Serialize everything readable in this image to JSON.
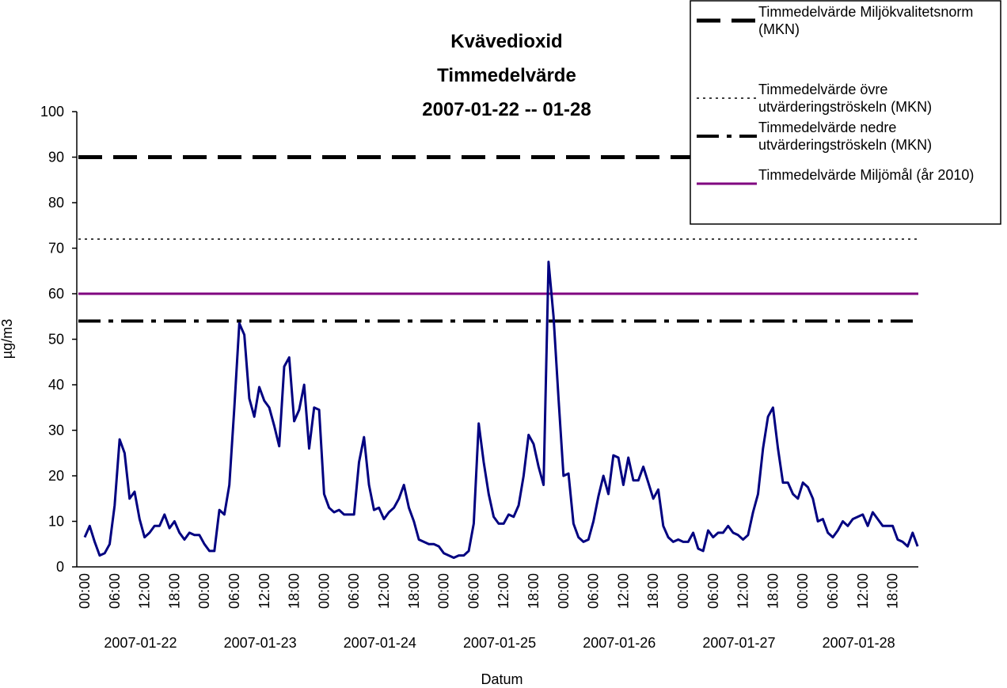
{
  "chart_data": {
    "type": "line",
    "title": [
      "Kvävedioxid",
      "Timmedelvärde",
      "2007-01-22 -- 01-28"
    ],
    "ylabel": "µg/m3",
    "xlabel": "Datum",
    "ylim": [
      0,
      100
    ],
    "yticks": [
      0,
      10,
      20,
      30,
      40,
      50,
      60,
      70,
      80,
      90,
      100
    ],
    "grid": false,
    "legend": "top-right",
    "categories": [
      "00:00",
      null,
      null,
      null,
      null,
      null,
      "06:00",
      null,
      null,
      null,
      null,
      null,
      "12:00",
      null,
      null,
      null,
      null,
      null,
      "18:00",
      null,
      null,
      null,
      null,
      null,
      "00:00",
      null,
      null,
      null,
      null,
      null,
      "06:00",
      null,
      null,
      null,
      null,
      null,
      "12:00",
      null,
      null,
      null,
      null,
      null,
      "18:00",
      null,
      null,
      null,
      null,
      null,
      "00:00",
      null,
      null,
      null,
      null,
      null,
      "06:00",
      null,
      null,
      null,
      null,
      null,
      "12:00",
      null,
      null,
      null,
      null,
      null,
      "18:00",
      null,
      null,
      null,
      null,
      null,
      "00:00",
      null,
      null,
      null,
      null,
      null,
      "06:00",
      null,
      null,
      null,
      null,
      null,
      "12:00",
      null,
      null,
      null,
      null,
      null,
      "18:00",
      null,
      null,
      null,
      null,
      null,
      "00:00",
      null,
      null,
      null,
      null,
      null,
      "06:00",
      null,
      null,
      null,
      null,
      null,
      "12:00",
      null,
      null,
      null,
      null,
      null,
      "18:00",
      null,
      null,
      null,
      null,
      null,
      "00:00",
      null,
      null,
      null,
      null,
      null,
      "06:00",
      null,
      null,
      null,
      null,
      null,
      "12:00",
      null,
      null,
      null,
      null,
      null,
      "18:00",
      null,
      null,
      null,
      null,
      null,
      "00:00",
      null,
      null,
      null,
      null,
      null,
      "06:00",
      null,
      null,
      null,
      null,
      null,
      "12:00",
      null,
      null,
      null,
      null,
      null,
      "18:00",
      null,
      null,
      null,
      null,
      null
    ],
    "category_groups": [
      "2007-01-22",
      "2007-01-23",
      "2007-01-24",
      "2007-01-25",
      "2007-01-26",
      "2007-01-27",
      "2007-01-28"
    ],
    "series": [
      {
        "color": "#000080",
        "values": [
          6.5,
          9,
          5.5,
          2.5,
          3,
          5,
          13.5,
          28,
          25,
          15,
          16.5,
          10.5,
          6.5,
          7.5,
          9,
          9,
          11.5,
          8.5,
          10,
          7.5,
          6,
          7.5,
          7,
          7,
          5,
          3.5,
          3.5,
          12.5,
          11.5,
          18,
          35,
          53.5,
          51,
          37,
          33,
          39.5,
          36.5,
          35,
          31,
          26.5,
          44,
          46,
          32,
          34.5,
          40,
          26,
          35,
          34.5,
          16,
          13,
          12,
          12.5,
          11.5,
          11.5,
          11.5,
          23,
          28.5,
          18,
          12.5,
          13,
          10.5,
          12,
          13,
          15,
          18,
          13,
          10,
          6,
          5.5,
          5,
          5,
          4.5,
          3,
          2.5,
          2,
          2.5,
          2.5,
          3.5,
          9.5,
          31.5,
          23,
          16,
          11,
          9.5,
          9.5,
          11.5,
          11,
          13.5,
          20,
          29,
          27,
          22,
          18,
          67,
          55,
          37,
          20,
          20.5,
          9.5,
          6.5,
          5.5,
          6,
          10,
          15.5,
          20,
          16,
          24.5,
          24,
          18,
          24,
          19,
          19,
          22,
          18.5,
          15,
          17,
          9,
          6.5,
          5.5,
          6,
          5.5,
          5.5,
          7.5,
          4,
          3.5,
          8,
          6.5,
          7.5,
          7.5,
          9,
          7.5,
          7,
          6,
          7,
          12,
          16,
          26,
          33,
          35,
          26,
          18.5,
          18.5,
          16,
          15,
          18.5,
          17.5,
          15,
          10,
          10.5,
          7.5,
          6.5,
          8,
          10,
          9,
          10.5,
          11,
          11.5,
          9,
          12,
          10.5,
          9,
          9,
          9,
          6,
          5.5,
          4.5,
          7.5,
          4.5
        ]
      }
    ],
    "reference_lines": [
      {
        "name": "Timmedelvärde Miljökvalitetsnorm (MKN)",
        "value": 90,
        "color": "#000000",
        "style": "dashed"
      },
      {
        "name": "Timmedelvärde övre utvärderingströskeln (MKN)",
        "value": 72,
        "color": "#000000",
        "style": "dotted"
      },
      {
        "name": "Timmedelvärde nedre utvärderingströskeln (MKN)",
        "value": 54,
        "color": "#000000",
        "style": "dashdot"
      },
      {
        "name": "Timmedelvärde Miljömål (år 2010)",
        "value": 60,
        "color": "#800080",
        "style": "solid"
      }
    ]
  }
}
